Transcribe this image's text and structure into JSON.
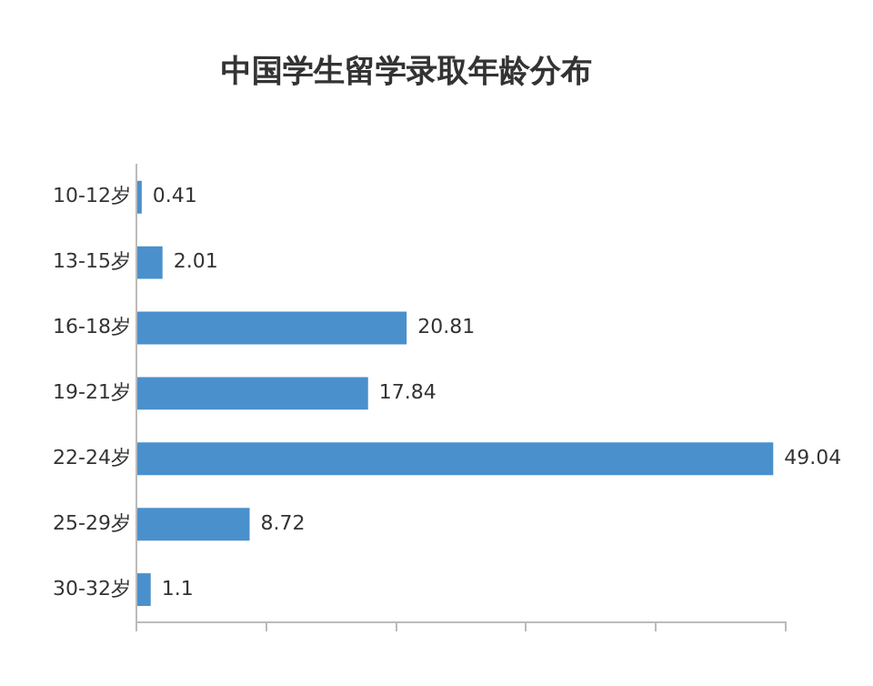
{
  "chart_data": {
    "type": "bar",
    "orientation": "horizontal",
    "title": "中国学生留学录取年龄分布",
    "categories": [
      "10-12岁",
      "13-15岁",
      "16-18岁",
      "19-21岁",
      "22-24岁",
      "25-29岁",
      "30-32岁"
    ],
    "values": [
      0.41,
      2.01,
      20.81,
      17.84,
      49.04,
      8.72,
      1.1
    ],
    "color": "#4a90cc",
    "xlim": [
      0,
      50
    ],
    "xticks": [
      {
        "value": 0,
        "label": null
      },
      {
        "value": 10,
        "label": null
      },
      {
        "value": 20,
        "label": null
      },
      {
        "value": 30,
        "label": null
      },
      {
        "value": 40,
        "label": null
      },
      {
        "value": 50,
        "label": null
      }
    ],
    "tick_labels": "y",
    "grid": false,
    "legend": false,
    "data_labels": true
  }
}
